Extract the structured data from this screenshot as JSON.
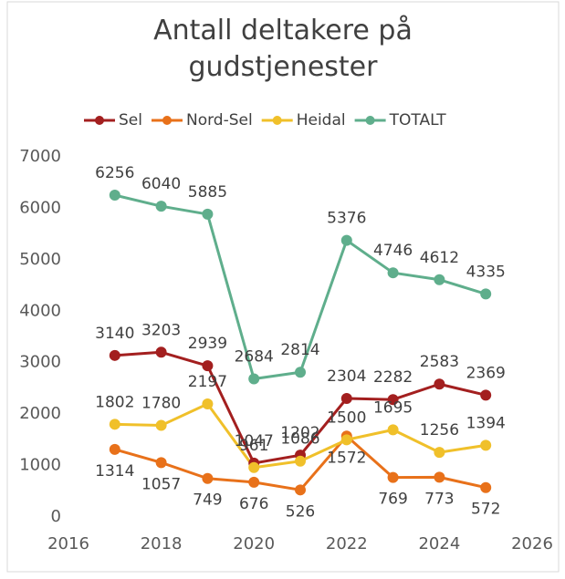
{
  "chart_data": {
    "type": "line",
    "title": "Antall deltakere på gudstjenester",
    "x": [
      2017,
      2018,
      2019,
      2020,
      2021,
      2022,
      2023,
      2024,
      2025
    ],
    "series": [
      {
        "name": "Sel",
        "color": "#a31f1f",
        "values": [
          3140,
          3203,
          2939,
          1047,
          1202,
          2304,
          2282,
          2583,
          2369
        ]
      },
      {
        "name": "Nord-Sel",
        "color": "#e8711a",
        "values": [
          1314,
          1057,
          749,
          676,
          526,
          1572,
          769,
          773,
          572
        ]
      },
      {
        "name": "Heidal",
        "color": "#f0c02a",
        "values": [
          1802,
          1780,
          2197,
          961,
          1086,
          1500,
          1695,
          1256,
          1394
        ]
      },
      {
        "name": "TOTALT",
        "color": "#5fae8c",
        "values": [
          6256,
          6040,
          5885,
          2684,
          2814,
          5376,
          4746,
          4612,
          4335
        ]
      }
    ],
    "xlim": [
      2016,
      2026
    ],
    "xticks": [
      2016,
      2018,
      2020,
      2022,
      2024,
      2026
    ],
    "ylim": [
      0,
      7000
    ],
    "yticks": [
      0,
      1000,
      2000,
      3000,
      4000,
      5000,
      6000,
      7000
    ],
    "grid": false,
    "legend": "top"
  }
}
